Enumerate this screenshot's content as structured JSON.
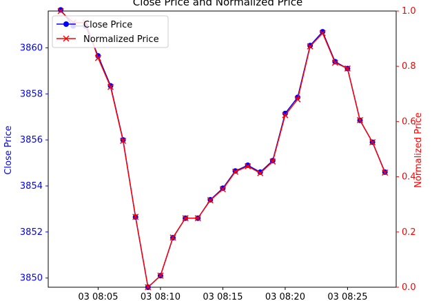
{
  "chart_data": {
    "type": "line",
    "title": "Close Price and Normalized Price",
    "xlabel": "",
    "ylabel_left": "Close Price",
    "ylabel_right": "Normalized Price",
    "left_color": "#0000ff",
    "right_color": "#ff0000",
    "x_tick_labels": [
      "03 08:05",
      "03 08:10",
      "03 08:15",
      "03 08:20",
      "03 08:25"
    ],
    "x_tick_minutes": [
      5,
      10,
      15,
      20,
      25
    ],
    "xlim_minutes": [
      1.0,
      28.9
    ],
    "left_ylim": [
      3849.6,
      3861.6
    ],
    "left_yticks": [
      "3850",
      "3852",
      "3854",
      "3856",
      "3858",
      "3860"
    ],
    "right_ylim": [
      0.0,
      1.0
    ],
    "right_yticks": [
      "0.0",
      "0.2",
      "0.4",
      "0.6",
      "0.8",
      "1.0"
    ],
    "legend_position": "upper left",
    "series": [
      {
        "name": "Close Price",
        "axis": "left",
        "color": "#0000ff",
        "marker": "o",
        "x_minutes": [
          2,
          3,
          4,
          5,
          6,
          7,
          8,
          9,
          10,
          11,
          12,
          13,
          14,
          15,
          16,
          17,
          18,
          19,
          20,
          21,
          22,
          23,
          24,
          25,
          26,
          27,
          28
        ],
        "values": [
          3861.65,
          3860.95,
          3860.95,
          3859.65,
          3858.35,
          3856.0,
          3852.65,
          3849.6,
          3850.1,
          3851.75,
          3852.6,
          3852.6,
          3853.4,
          3853.9,
          3854.65,
          3854.9,
          3854.6,
          3855.1,
          3857.15,
          3857.85,
          3860.1,
          3860.7,
          3859.4,
          3859.1,
          3856.85,
          3855.9,
          3854.6
        ]
      },
      {
        "name": "Normalized Price",
        "axis": "right",
        "color": "#ff0000",
        "marker": "x",
        "x_minutes": [
          2,
          3,
          4,
          5,
          6,
          7,
          8,
          9,
          10,
          11,
          12,
          13,
          14,
          15,
          16,
          17,
          18,
          19,
          20,
          21,
          22,
          23,
          24,
          25,
          26,
          27,
          28
        ],
        "values": [
          1.0,
          0.958,
          0.958,
          0.83,
          0.725,
          0.53,
          0.255,
          0.0,
          0.042,
          0.18,
          0.25,
          0.25,
          0.315,
          0.355,
          0.418,
          0.438,
          0.413,
          0.455,
          0.623,
          0.68,
          0.872,
          0.92,
          0.813,
          0.792,
          0.605,
          0.525,
          0.415
        ]
      }
    ]
  }
}
